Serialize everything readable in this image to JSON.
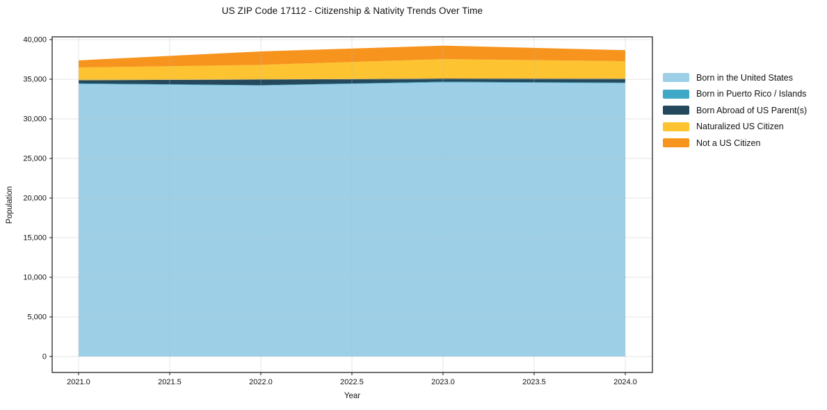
{
  "title": "US ZIP Code 17112 - Citizenship & Nativity Trends Over Time",
  "chart_data": {
    "type": "area",
    "stacked": true,
    "title": "US ZIP Code 17112 - Citizenship & Nativity Trends Over Time",
    "xlabel": "Year",
    "ylabel": "Population",
    "x": [
      2021,
      2022,
      2023,
      2024
    ],
    "series": [
      {
        "name": "Born in the United States",
        "color": "#9dd0e7",
        "values": [
          34400,
          34200,
          34600,
          34500
        ]
      },
      {
        "name": "Born in Puerto Rico / Islands",
        "color": "#3fa8c6",
        "values": [
          80,
          60,
          90,
          70
        ]
      },
      {
        "name": "Born Abroad of US Parent(s)",
        "color": "#24485c",
        "values": [
          400,
          700,
          400,
          500
        ]
      },
      {
        "name": "Naturalized US Citizen",
        "color": "#fdc330",
        "values": [
          1600,
          1850,
          2450,
          2200
        ]
      },
      {
        "name": "Not a US Citizen",
        "color": "#f7941e",
        "values": [
          900,
          1700,
          1700,
          1400
        ]
      }
    ],
    "totals": [
      37380,
      38510,
      39240,
      38670
    ],
    "xticks": [
      2021.0,
      2021.5,
      2022.0,
      2022.5,
      2023.0,
      2023.5,
      2024.0
    ],
    "xtick_labels": [
      "2021.0",
      "2021.5",
      "2022.0",
      "2022.5",
      "2023.0",
      "2023.5",
      "2024.0"
    ],
    "yticks": [
      0,
      5000,
      10000,
      15000,
      20000,
      25000,
      30000,
      35000,
      40000
    ],
    "ytick_labels": [
      "0",
      "5,000",
      "10,000",
      "15,000",
      "20,000",
      "25,000",
      "30,000",
      "35,000",
      "40,000"
    ],
    "xlim": [
      2020.855,
      2024.149
    ],
    "ylim": [
      -2017,
      40351
    ],
    "grid": true,
    "legend_position": "right-outside",
    "colors": {
      "spine": "#111111",
      "grid": "#bbbbbb",
      "tick_text": "#111111",
      "background": "#ffffff"
    }
  }
}
